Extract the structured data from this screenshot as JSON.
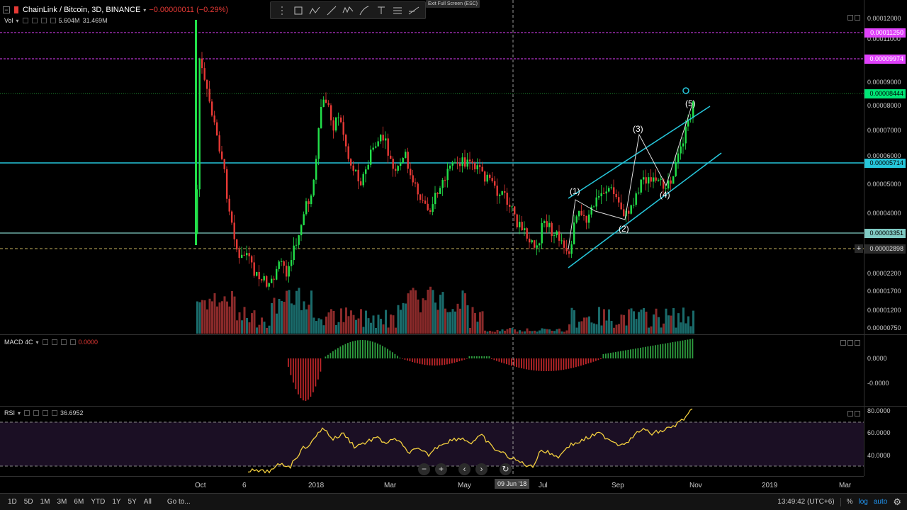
{
  "header": {
    "symbol": "ChainLink / Bitcoin, 3D, BINANCE",
    "change": "−0.00000011 (−0.29%)",
    "collapse_glyph": "−",
    "dropdown_glyph": "▾"
  },
  "volume_legend": {
    "label": "Vol",
    "v1": "5.604M",
    "v2": "31.469M"
  },
  "macd_legend": {
    "label": "MACD 4C",
    "value": "0.0000"
  },
  "rsi_legend": {
    "label": "RSI",
    "value": "36.6952"
  },
  "toolbar": {
    "exit_fullscreen": "Exit Full Screen (ESC)"
  },
  "price_axis": {
    "ticks": [
      "0.00012000",
      "0.00011000",
      "0.00009000",
      "0.00008000",
      "0.00007000",
      "0.00006000",
      "0.00005000",
      "0.00004000",
      "0.00002200",
      "0.00001700",
      "0.00001200",
      "0.00000750"
    ],
    "tags": [
      {
        "text": "0.00011250",
        "color": "#e040fb"
      },
      {
        "text": "0.00009974",
        "color": "#e040fb"
      },
      {
        "text": "0.00008444",
        "color": "#00e676"
      },
      {
        "text": "0.00005714",
        "color": "#26c6da"
      },
      {
        "text": "0.00003351",
        "color": "#80cbc4"
      },
      {
        "text": "0.00002898",
        "color": "#2a2a2a"
      }
    ]
  },
  "macd_axis": {
    "ticks": [
      "0.0000",
      "-0.0000"
    ]
  },
  "rsi_axis": {
    "ticks": [
      "80.0000",
      "60.0000",
      "40.0000"
    ]
  },
  "waves": [
    "(1)",
    "(2)",
    "(3)",
    "(4)",
    "(5)"
  ],
  "time_axis": {
    "labels": [
      "Oct",
      "6",
      "2018",
      "Mar",
      "May",
      "Jul",
      "Sep",
      "Nov",
      "2019",
      "Mar"
    ],
    "crosshair_date": "09 Jun '18"
  },
  "navigation": {
    "zoom_out": "−",
    "zoom_in": "+",
    "scroll_left": "‹",
    "scroll_right": "›",
    "reset": "↻"
  },
  "bottom_bar": {
    "ranges": [
      "1D",
      "5D",
      "1M",
      "3M",
      "6M",
      "YTD",
      "1Y",
      "5Y",
      "All"
    ],
    "goto": "Go to...",
    "clock": "13:49:42 (UTC+6)",
    "percent": "%",
    "log": "log",
    "auto": "auto",
    "settings_glyph": "⚙"
  },
  "colors": {
    "up": "#22e04a",
    "down": "#e53935",
    "channel": "#26c6da",
    "rsi_line": "#f4d03f",
    "magenta": "#e040fb"
  }
}
